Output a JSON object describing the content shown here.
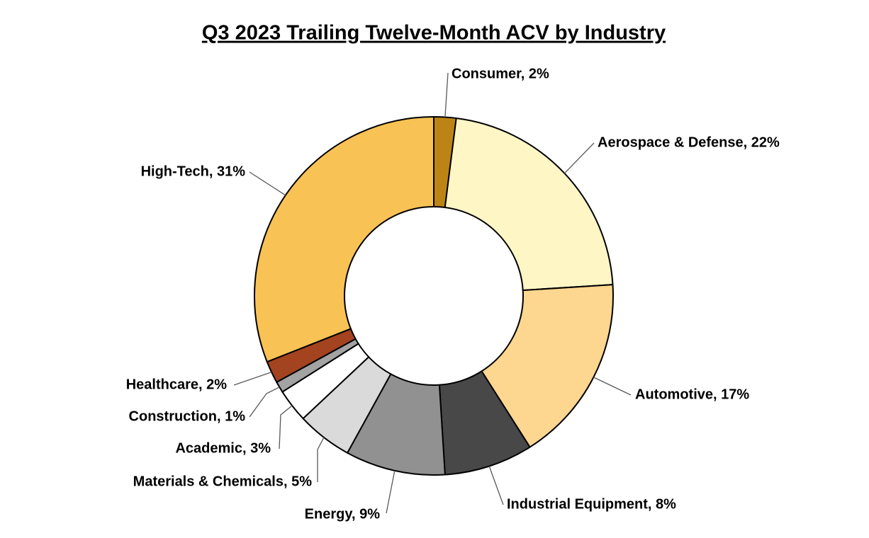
{
  "chart_data": {
    "type": "donut",
    "title": "Q3 2023 Trailing Twelve-Month ACV by Industry",
    "values": [
      2,
      22,
      17,
      8,
      9,
      5,
      3,
      1,
      2,
      31
    ],
    "value_labels": [
      "Consumer, 2%",
      "Aerospace & Defense, 22%",
      "Automotive, 17%",
      "Industrial Equipment, 8%",
      "Energy, 9%",
      "Materials & Chemicals, 5%",
      "Academic, 3%",
      "Construction, 1%",
      "Healthcare, 2%",
      "High-Tech, 31%"
    ],
    "colors": [
      "#bc8414",
      "#fff6c6",
      "#fdd690",
      "#484848",
      "#919191",
      "#dadada",
      "#ffffff",
      "#a3a3a3",
      "#a3431f",
      "#f9c255"
    ]
  }
}
